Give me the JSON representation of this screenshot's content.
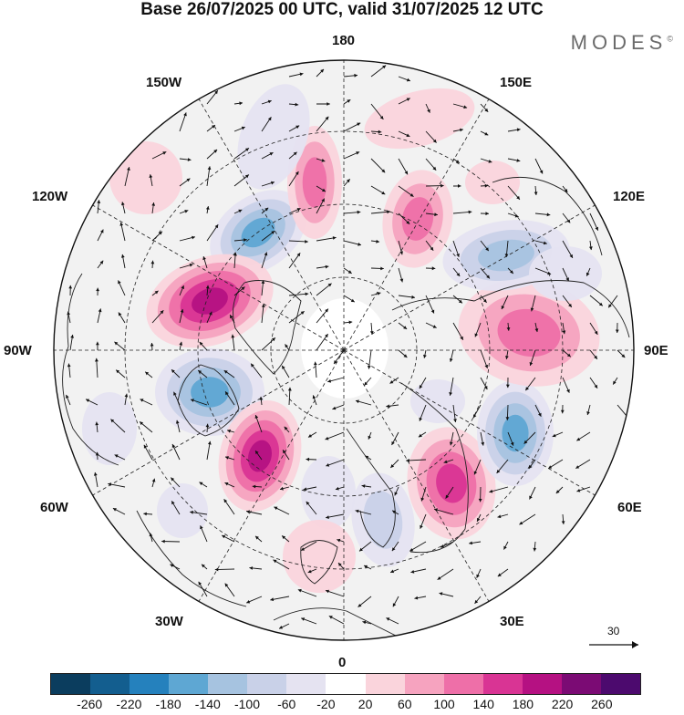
{
  "title": "Base 26/07/2025 00 UTC, valid 31/07/2025 12 UTC",
  "brand": "MODES",
  "brand_mark": "©",
  "map": {
    "projection": "north-polar-stereographic",
    "longitude_labels": {
      "top": "180",
      "bottom": "0",
      "left": "90W",
      "right": "90E",
      "nw1": "150W",
      "nw2": "120W",
      "ne1": "150E",
      "ne2": "120E",
      "sw1": "60W",
      "sw2": "30W",
      "se1": "60E",
      "se2": "30E"
    },
    "vector_scale_label": "30",
    "colors": {
      "ocean_background": "#f2f2f2",
      "negative": "#2f7fb9",
      "positive": "#c0188b"
    }
  },
  "colorbar": {
    "ticks": [
      "-260",
      "-220",
      "-180",
      "-140",
      "-100",
      "-60",
      "-20",
      "20",
      "60",
      "100",
      "140",
      "180",
      "220",
      "260"
    ],
    "colors": [
      "#0b3d5e",
      "#135e8f",
      "#2581bd",
      "#5ea7d3",
      "#a6c3e0",
      "#c9d1e8",
      "#e5e3f1",
      "#ffffff",
      "#fad4dc",
      "#f6a3bf",
      "#ee6fa8",
      "#d93494",
      "#b51182",
      "#7b0b74",
      "#4c0a6e"
    ]
  }
}
